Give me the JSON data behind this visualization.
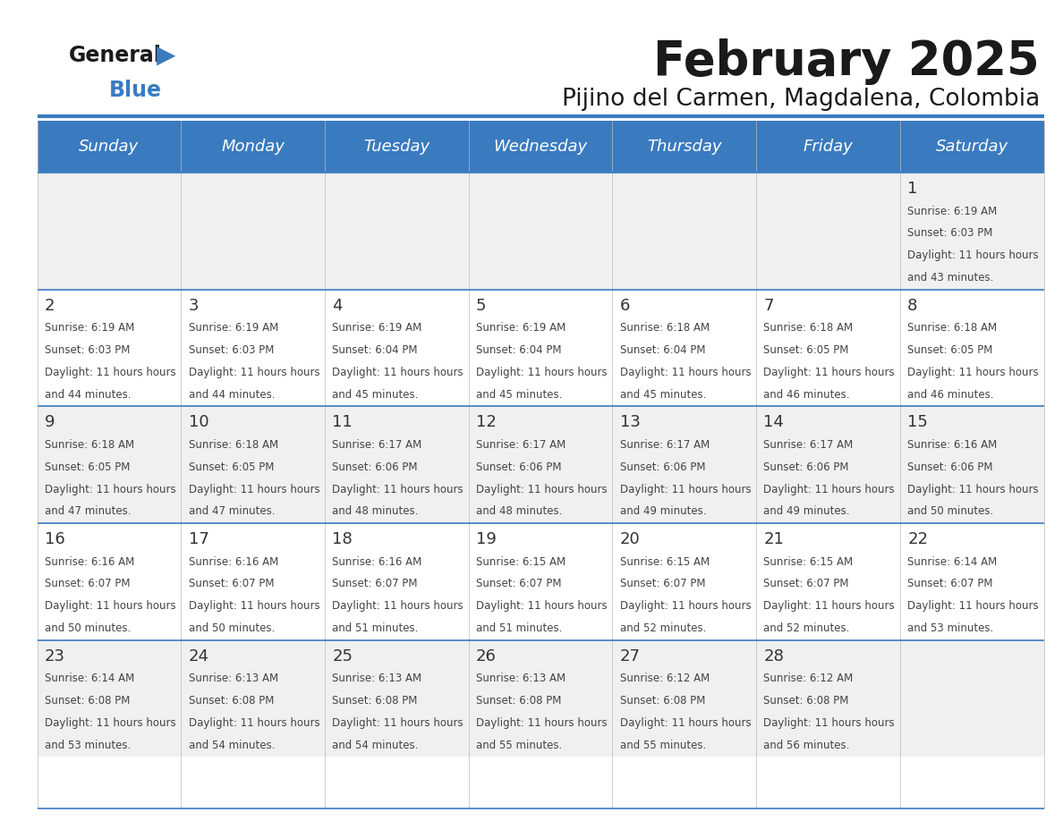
{
  "title": "February 2025",
  "subtitle": "Pijino del Carmen, Magdalena, Colombia",
  "header_bg": "#3a7bbf",
  "header_text_color": "#ffffff",
  "cell_bg_light": "#f0f0f0",
  "cell_bg_white": "#ffffff",
  "day_headers": [
    "Sunday",
    "Monday",
    "Tuesday",
    "Wednesday",
    "Thursday",
    "Friday",
    "Saturday"
  ],
  "title_color": "#1a1a1a",
  "subtitle_color": "#1a1a1a",
  "line_color": "#3a7bbf",
  "number_color": "#333333",
  "text_color": "#444444",
  "calendar": [
    [
      null,
      null,
      null,
      null,
      null,
      null,
      {
        "day": 1,
        "sunrise": "6:19 AM",
        "sunset": "6:03 PM",
        "daylight": "11 hours and 43 minutes."
      }
    ],
    [
      {
        "day": 2,
        "sunrise": "6:19 AM",
        "sunset": "6:03 PM",
        "daylight": "11 hours and 44 minutes."
      },
      {
        "day": 3,
        "sunrise": "6:19 AM",
        "sunset": "6:03 PM",
        "daylight": "11 hours and 44 minutes."
      },
      {
        "day": 4,
        "sunrise": "6:19 AM",
        "sunset": "6:04 PM",
        "daylight": "11 hours and 45 minutes."
      },
      {
        "day": 5,
        "sunrise": "6:19 AM",
        "sunset": "6:04 PM",
        "daylight": "11 hours and 45 minutes."
      },
      {
        "day": 6,
        "sunrise": "6:18 AM",
        "sunset": "6:04 PM",
        "daylight": "11 hours and 45 minutes."
      },
      {
        "day": 7,
        "sunrise": "6:18 AM",
        "sunset": "6:05 PM",
        "daylight": "11 hours and 46 minutes."
      },
      {
        "day": 8,
        "sunrise": "6:18 AM",
        "sunset": "6:05 PM",
        "daylight": "11 hours and 46 minutes."
      }
    ],
    [
      {
        "day": 9,
        "sunrise": "6:18 AM",
        "sunset": "6:05 PM",
        "daylight": "11 hours and 47 minutes."
      },
      {
        "day": 10,
        "sunrise": "6:18 AM",
        "sunset": "6:05 PM",
        "daylight": "11 hours and 47 minutes."
      },
      {
        "day": 11,
        "sunrise": "6:17 AM",
        "sunset": "6:06 PM",
        "daylight": "11 hours and 48 minutes."
      },
      {
        "day": 12,
        "sunrise": "6:17 AM",
        "sunset": "6:06 PM",
        "daylight": "11 hours and 48 minutes."
      },
      {
        "day": 13,
        "sunrise": "6:17 AM",
        "sunset": "6:06 PM",
        "daylight": "11 hours and 49 minutes."
      },
      {
        "day": 14,
        "sunrise": "6:17 AM",
        "sunset": "6:06 PM",
        "daylight": "11 hours and 49 minutes."
      },
      {
        "day": 15,
        "sunrise": "6:16 AM",
        "sunset": "6:06 PM",
        "daylight": "11 hours and 50 minutes."
      }
    ],
    [
      {
        "day": 16,
        "sunrise": "6:16 AM",
        "sunset": "6:07 PM",
        "daylight": "11 hours and 50 minutes."
      },
      {
        "day": 17,
        "sunrise": "6:16 AM",
        "sunset": "6:07 PM",
        "daylight": "11 hours and 50 minutes."
      },
      {
        "day": 18,
        "sunrise": "6:16 AM",
        "sunset": "6:07 PM",
        "daylight": "11 hours and 51 minutes."
      },
      {
        "day": 19,
        "sunrise": "6:15 AM",
        "sunset": "6:07 PM",
        "daylight": "11 hours and 51 minutes."
      },
      {
        "day": 20,
        "sunrise": "6:15 AM",
        "sunset": "6:07 PM",
        "daylight": "11 hours and 52 minutes."
      },
      {
        "day": 21,
        "sunrise": "6:15 AM",
        "sunset": "6:07 PM",
        "daylight": "11 hours and 52 minutes."
      },
      {
        "day": 22,
        "sunrise": "6:14 AM",
        "sunset": "6:07 PM",
        "daylight": "11 hours and 53 minutes."
      }
    ],
    [
      {
        "day": 23,
        "sunrise": "6:14 AM",
        "sunset": "6:08 PM",
        "daylight": "11 hours and 53 minutes."
      },
      {
        "day": 24,
        "sunrise": "6:13 AM",
        "sunset": "6:08 PM",
        "daylight": "11 hours and 54 minutes."
      },
      {
        "day": 25,
        "sunrise": "6:13 AM",
        "sunset": "6:08 PM",
        "daylight": "11 hours and 54 minutes."
      },
      {
        "day": 26,
        "sunrise": "6:13 AM",
        "sunset": "6:08 PM",
        "daylight": "11 hours and 55 minutes."
      },
      {
        "day": 27,
        "sunrise": "6:12 AM",
        "sunset": "6:08 PM",
        "daylight": "11 hours and 55 minutes."
      },
      {
        "day": 28,
        "sunrise": "6:12 AM",
        "sunset": "6:08 PM",
        "daylight": "11 hours and 56 minutes."
      },
      null
    ]
  ]
}
